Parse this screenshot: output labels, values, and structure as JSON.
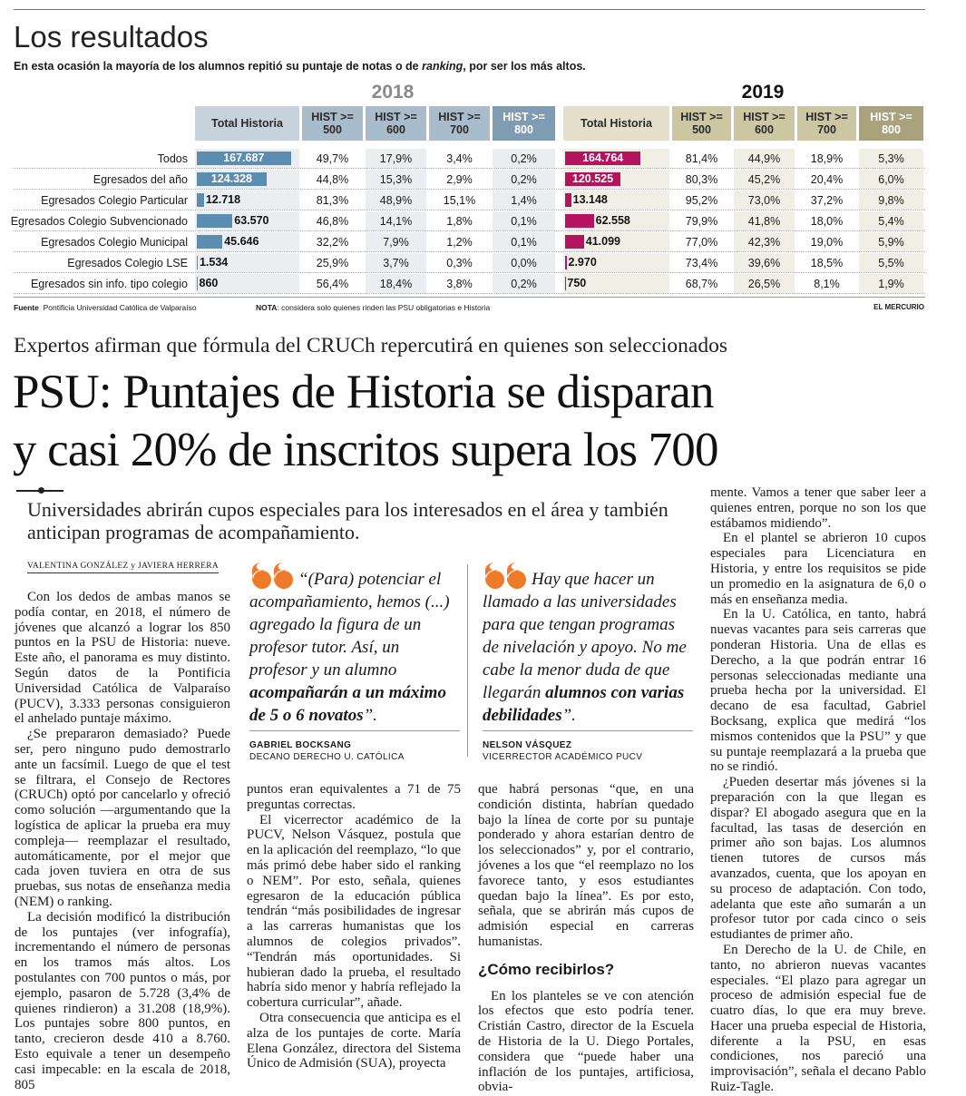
{
  "infographic": {
    "title": "Los resultados",
    "subtitle": [
      "En esta ocasión la mayoría de los alumnos repitió su puntaje de notas o de",
      "ranking",
      ", por ser los más altos."
    ],
    "years": [
      "2018",
      "2019"
    ],
    "headers": [
      "Total Historia",
      "HIST >= 500",
      "HIST >= 600",
      "HIST >= 700",
      "HIST >= 800"
    ],
    "rows": [
      {
        "label": "Todos",
        "data": [
          {
            "total": {
              "value": 167687,
              "label": "167.687"
            },
            "pct": [
              "49,7%",
              "17,9%",
              "3,4%",
              "0,2%"
            ]
          },
          {
            "total": {
              "value": 164764,
              "label": "164.764"
            },
            "pct": [
              "81,4%",
              "44,9%",
              "18,9%",
              "5,3%"
            ]
          }
        ]
      },
      {
        "label": "Egresados del año",
        "data": [
          {
            "total": {
              "value": 124328,
              "label": "124.328"
            },
            "pct": [
              "44,8%",
              "15,3%",
              "2,9%",
              "0,2%"
            ]
          },
          {
            "total": {
              "value": 120525,
              "label": "120.525"
            },
            "pct": [
              "80,3%",
              "45,2%",
              "20,4%",
              "6,0%"
            ]
          }
        ]
      },
      {
        "label": "Egresados Colegio Particular",
        "data": [
          {
            "total": {
              "value": 12718,
              "label": "12.718"
            },
            "pct": [
              "81,3%",
              "48,9%",
              "15,1%",
              "1,4%"
            ]
          },
          {
            "total": {
              "value": 13148,
              "label": "13.148"
            },
            "pct": [
              "95,2%",
              "73,0%",
              "37,2%",
              "9,8%"
            ]
          }
        ]
      },
      {
        "label": "Egresados Colegio Subvencionado",
        "data": [
          {
            "total": {
              "value": 63570,
              "label": "63.570"
            },
            "pct": [
              "46,8%",
              "14,1%",
              "1,8%",
              "0,1%"
            ]
          },
          {
            "total": {
              "value": 62558,
              "label": "62.558"
            },
            "pct": [
              "79,9%",
              "41,8%",
              "18,0%",
              "5,4%"
            ]
          }
        ]
      },
      {
        "label": "Egresados Colegio Municipal",
        "data": [
          {
            "total": {
              "value": 45646,
              "label": "45.646"
            },
            "pct": [
              "32,2%",
              "7,9%",
              "1,2%",
              "0,1%"
            ]
          },
          {
            "total": {
              "value": 41099,
              "label": "41.099"
            },
            "pct": [
              "77,0%",
              "42,3%",
              "19,0%",
              "5,9%"
            ]
          }
        ]
      },
      {
        "label": "Egresados Colegio LSE",
        "data": [
          {
            "total": {
              "value": 1534,
              "label": "1.534"
            },
            "pct": [
              "25,9%",
              "3,7%",
              "0,3%",
              "0,0%"
            ]
          },
          {
            "total": {
              "value": 2970,
              "label": "2.970"
            },
            "pct": [
              "73,4%",
              "39,6%",
              "18,5%",
              "5,5%"
            ]
          }
        ]
      },
      {
        "label": "Egresados sin info. tipo colegio",
        "data": [
          {
            "total": {
              "value": 860,
              "label": "860"
            },
            "pct": [
              "56,4%",
              "18,4%",
              "3,8%",
              "0,2%"
            ]
          },
          {
            "total": {
              "value": 750,
              "label": "750"
            },
            "pct": [
              "68,7%",
              "26,5%",
              "8,1%",
              "1,9%"
            ]
          }
        ]
      }
    ],
    "source_label": "Fuente",
    "source": "Pontificia Universidad Católica de Valparaíso",
    "note_label": "NOTA",
    "note": ": considera solo quienes rinden las PSU obligatorias e Historia",
    "credit": "EL MERCURIO"
  },
  "article": {
    "kicker": "Expertos afirman que fórmula del CRUCh repercutirá en quienes son seleccionados",
    "headline": [
      "PSU: Puntajes de Historia se disparan",
      "y casi 20% de inscritos supera los 700"
    ],
    "deck": "Universidades abrirán cupos especiales para los interesados en el área y también anticipan programas de acompañamiento.",
    "byline": "VALENTINA GONZÁLEZ y JAVIERA HERRERA",
    "quotes": [
      {
        "lead": "“(Para) potenciar el acompañamiento, hemos (...) agregado la figura de un profesor tutor. Así, un profesor y un alumno",
        "emphasis": "acompañarán a un máximo de 5 o 6 novatos",
        "end": "”.",
        "name": "GABRIEL BOCKSANG",
        "role": "DECANO DERECHO U. CATÓLICA"
      },
      {
        "lead": "Hay que hacer un llamado a las universidades para que tengan programas de nivelación y apoyo. No me cabe la menor duda de que llegarán",
        "emphasis": "alumnos con varias debilidades",
        "end": "”.",
        "name": "NELSON VÁSQUEZ",
        "role": "VICERRECTOR ACADÉMICO PUCV"
      }
    ],
    "columns": [
      {
        "paragraphs": [
          "Con los dedos de ambas manos se podía contar, en 2018, el número de jóvenes que alcanzó a lograr los 850 puntos en la PSU de Historia: nueve. Este año, el panorama es muy distinto. Según datos de la Pontificia Universidad Católica de Valparaíso (PUCV), 3.333 personas consiguieron el anhelado puntaje máximo.",
          "¿Se prepararon demasiado? Puede ser, pero ninguno pudo demostrarlo ante un facsímil. Luego de que el test se filtrara, el Consejo de Rectores (CRUCh) optó por cancelarlo y ofreció como solución —argumentando que la logística de aplicar la prueba era muy compleja— reemplazar el resultado, automáticamente, por el mejor que cada joven tuviera en otra de sus pruebas, sus notas de enseñanza media (NEM) o ranking.",
          "La decisión modificó la distribución de los puntajes (ver infografía), incrementando el número de personas en los tramos más altos. Los postulantes con 700 puntos o más, por ejemplo, pasaron de 5.728 (3,4% de quienes rindieron) a 31.208 (18,9%). Los puntajes sobre 800 puntos, en tanto, crecieron desde 410 a 8.760. Esto equivale a tener un desempeño casi impecable: en la escala de 2018, 805"
        ]
      },
      {
        "paragraphs": [
          "puntos eran equivalentes a 71 de 75 preguntas correctas.",
          "El vicerrector académico de la PUCV, Nelson Vásquez, postula que en la aplicación del reemplazo, “lo que más primó debe haber sido el ranking o NEM”. Por esto, señala, quienes egresaron de la educación pública tendrán “más posibilidades de ingresar a las carreras humanistas que los alumnos de colegios privados”. “Tendrán más oportunidades. Si hubieran dado la prueba, el resultado habría sido menor y habría reflejado la cobertura curricular”, añade.",
          "Otra consecuencia que anticipa es el alza de los puntajes de corte. María Elena González, directora del Sistema Único de Admisión (SUA), proyecta"
        ]
      },
      {
        "paragraphs": [
          "que habrá personas “que, en una condición distinta, habrían quedado bajo la línea de corte por su puntaje ponderado y ahora estarían dentro de los seleccionados” y, por el contrario, jóvenes a los que “el reemplazo no los favorece tanto, y esos estudiantes quedan bajo la línea”. Es por esto, señala, que se abrirán más cupos de admisión especial en carreras humanistas."
        ],
        "subhead": "¿Cómo recibirlos?",
        "after": [
          "En los planteles se ve con atención los efectos que esto podría tener. Cristián Castro, director de la Escuela de Historia de la U. Diego Portales, considera que “puede haber una inflación de los puntajes, artificiosa, obvia-"
        ]
      },
      {
        "paragraphs": [
          "mente. Vamos a tener que saber leer a quienes entren, porque no son los que estábamos midiendo”.",
          "En el plantel se abrieron 10 cupos especiales para Licenciatura en Historia, y entre los requisitos se pide un promedio en la asignatura de 6,0 o más en enseñanza media.",
          "En la U. Católica, en tanto, habrá nuevas vacantes para seis carreras que ponderan Historia. Una de ellas es Derecho, a la que podrán entrar 16 personas seleccionadas mediante una prueba hecha por la universidad. El decano de esa facultad, Gabriel Bocksang, explica que medirá “los mismos contenidos que la PSU” y que su puntaje reemplazará a la prueba que no se rindió.",
          "¿Pueden desertar más jóvenes si la preparación con la que llegan es dispar? El abogado asegura que en la facultad, las tasas de deserción en primer año son bajas. Los alumnos tienen tutores de cursos más avanzados, cuenta, que los apoyan en su proceso de adaptación. Con todo, adelanta que este año sumarán a un profesor tutor por cada cinco o seis estudiantes de primer año.",
          "En Derecho de la U. de Chile, en tanto, no abrieron nuevas vacantes especiales. “El plazo para agregar un proceso de admisión especial fue de cuatro días, lo que era muy breve. Hacer una prueba especial de Historia, diferente a la PSU, en esas condiciones, nos pareció una improvisación”, señala el decano Pablo Ruiz-Tagle."
        ]
      }
    ]
  }
}
